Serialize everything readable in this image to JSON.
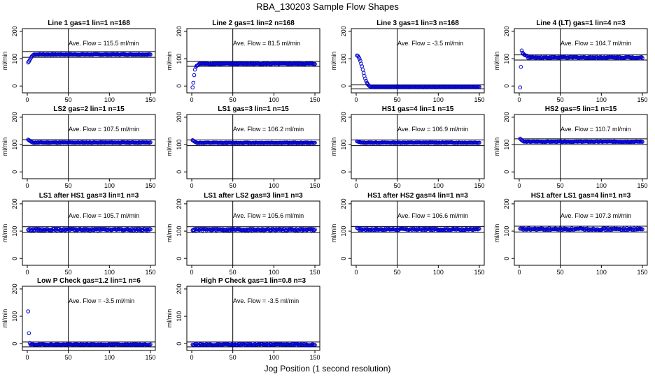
{
  "figure": {
    "title": "RBA_130203  Sample Flow Shapes",
    "xlabel": "Jog Position (1 second resolution)"
  },
  "chart_data": [
    {
      "type": "scatter",
      "title": "Line 1 gas=1 lin=1 n=168",
      "ylabel": "ml/min",
      "annotation": "Ave. Flow = 115.5  ml/min",
      "xlim": [
        0,
        150
      ],
      "ylim": [
        -25,
        210
      ],
      "xticks": [
        0,
        50,
        100,
        150
      ],
      "yticks": [
        0,
        100,
        200
      ],
      "vline": 50,
      "hlines": [
        105,
        126
      ],
      "mean": 115.5,
      "points": {
        "x_start": 1,
        "x_end": 150,
        "n": 150,
        "baseline": 115.5,
        "noise": 1.2,
        "init": [
          86,
          90,
          95,
          101,
          106,
          110,
          113,
          115
        ]
      },
      "marker_color": "#0000cc"
    },
    {
      "type": "scatter",
      "title": "Line 2 gas=1 lin=2 n=168",
      "ylabel": "ml/min",
      "annotation": "Ave. Flow =  81.5  ml/min",
      "xlim": [
        0,
        150
      ],
      "ylim": [
        -25,
        210
      ],
      "xticks": [
        0,
        50,
        100,
        150
      ],
      "yticks": [
        0,
        100,
        200
      ],
      "vline": 50,
      "hlines": [
        72,
        90
      ],
      "mean": 81.5,
      "points": {
        "x_start": 1,
        "x_end": 150,
        "n": 150,
        "baseline": 81.5,
        "noise": 1.5,
        "init": [
          -5,
          12,
          40,
          60,
          70,
          74,
          76,
          77
        ]
      },
      "marker_color": "#0000cc"
    },
    {
      "type": "scatter",
      "title": "Line 3 gas=1 lin=3 n=168",
      "ylabel": "ml/min",
      "annotation": "Ave. Flow = -3.5  ml/min",
      "xlim": [
        0,
        150
      ],
      "ylim": [
        -25,
        210
      ],
      "xticks": [
        0,
        50,
        100,
        150
      ],
      "yticks": [
        0,
        100,
        200
      ],
      "vline": 50,
      "hlines": [
        -10,
        4
      ],
      "mean": -3.5,
      "points": {
        "x_start": 1,
        "x_end": 150,
        "n": 150,
        "baseline": -3.5,
        "noise": 1.0,
        "init": [
          112,
          110,
          106,
          100,
          92,
          82,
          72,
          60,
          48,
          37,
          27,
          19,
          12,
          7,
          3,
          0,
          -2
        ]
      },
      "marker_color": "#0000cc"
    },
    {
      "type": "scatter",
      "title": "Line 4 (LT) gas=1 lin=4 n=3",
      "ylabel": "ml/min",
      "annotation": "Ave. Flow = 104.7  ml/min",
      "xlim": [
        0,
        150
      ],
      "ylim": [
        -25,
        210
      ],
      "xticks": [
        0,
        50,
        100,
        150
      ],
      "yticks": [
        0,
        100,
        200
      ],
      "vline": 50,
      "hlines": [
        95,
        114
      ],
      "mean": 104.7,
      "points": {
        "x_start": 1,
        "x_end": 150,
        "n": 150,
        "baseline": 104.7,
        "noise": 2.5,
        "init": [
          -5,
          70,
          130,
          122,
          118,
          115,
          113,
          112,
          111,
          110
        ]
      },
      "marker_color": "#0000cc"
    },
    {
      "type": "scatter",
      "title": "LS2 gas=2 lin=1 n=15",
      "ylabel": "ml/min",
      "annotation": "Ave. Flow = 107.5  ml/min",
      "xlim": [
        0,
        150
      ],
      "ylim": [
        -25,
        210
      ],
      "xticks": [
        0,
        50,
        100,
        150
      ],
      "yticks": [
        0,
        100,
        200
      ],
      "vline": 50,
      "hlines": [
        97,
        118
      ],
      "mean": 107.5,
      "points": {
        "x_start": 1,
        "x_end": 150,
        "n": 150,
        "baseline": 107.5,
        "noise": 1.2,
        "init": [
          118,
          116,
          114,
          112,
          110
        ]
      },
      "marker_color": "#0000cc"
    },
    {
      "type": "scatter",
      "title": "LS1 gas=3 lin=1 n=15",
      "ylabel": "ml/min",
      "annotation": "Ave. Flow = 106.2  ml/min",
      "xlim": [
        0,
        150
      ],
      "ylim": [
        -25,
        210
      ],
      "xticks": [
        0,
        50,
        100,
        150
      ],
      "yticks": [
        0,
        100,
        200
      ],
      "vline": 50,
      "hlines": [
        96,
        117
      ],
      "mean": 106.2,
      "points": {
        "x_start": 1,
        "x_end": 150,
        "n": 150,
        "baseline": 106.2,
        "noise": 1.2,
        "init": [
          116,
          114,
          112,
          110,
          108
        ]
      },
      "marker_color": "#0000cc"
    },
    {
      "type": "scatter",
      "title": "HS1 gas=4 lin=1 n=15",
      "ylabel": "ml/min",
      "annotation": "Ave. Flow = 106.9  ml/min",
      "xlim": [
        0,
        150
      ],
      "ylim": [
        -25,
        210
      ],
      "xticks": [
        0,
        50,
        100,
        150
      ],
      "yticks": [
        0,
        100,
        200
      ],
      "vline": 50,
      "hlines": [
        96,
        117
      ],
      "mean": 106.9,
      "points": {
        "x_start": 1,
        "x_end": 150,
        "n": 150,
        "baseline": 106.9,
        "noise": 1.2,
        "init": [
          112,
          111,
          110,
          109,
          108
        ]
      },
      "marker_color": "#0000cc"
    },
    {
      "type": "scatter",
      "title": "HS2 gas=5 lin=1 n=15",
      "ylabel": "ml/min",
      "annotation": "Ave. Flow = 110.7  ml/min",
      "xlim": [
        0,
        150
      ],
      "ylim": [
        -25,
        210
      ],
      "xticks": [
        0,
        50,
        100,
        150
      ],
      "yticks": [
        0,
        100,
        200
      ],
      "vline": 50,
      "hlines": [
        100,
        121
      ],
      "mean": 110.7,
      "points": {
        "x_start": 1,
        "x_end": 150,
        "n": 150,
        "baseline": 110.7,
        "noise": 1.2,
        "init": [
          122,
          119,
          116,
          114,
          112
        ]
      },
      "marker_color": "#0000cc"
    },
    {
      "type": "scatter",
      "title": "LS1 after HS1 gas=3 lin=1 n=3",
      "ylabel": "ml/min",
      "annotation": "Ave. Flow = 105.7  ml/min",
      "xlim": [
        0,
        150
      ],
      "ylim": [
        -25,
        210
      ],
      "xticks": [
        0,
        50,
        100,
        150
      ],
      "yticks": [
        0,
        100,
        200
      ],
      "vline": 50,
      "hlines": [
        95,
        116
      ],
      "mean": 105.7,
      "points": {
        "x_start": 1,
        "x_end": 150,
        "n": 150,
        "baseline": 105.7,
        "noise": 3.0,
        "init": []
      },
      "marker_color": "#0000cc"
    },
    {
      "type": "scatter",
      "title": "LS1 after LS2 gas=3 lin=1 n=3",
      "ylabel": "ml/min",
      "annotation": "Ave. Flow = 105.6  ml/min",
      "xlim": [
        0,
        150
      ],
      "ylim": [
        -25,
        210
      ],
      "xticks": [
        0,
        50,
        100,
        150
      ],
      "yticks": [
        0,
        100,
        200
      ],
      "vline": 50,
      "hlines": [
        95,
        116
      ],
      "mean": 105.6,
      "points": {
        "x_start": 1,
        "x_end": 150,
        "n": 150,
        "baseline": 105.6,
        "noise": 3.0,
        "init": []
      },
      "marker_color": "#0000cc"
    },
    {
      "type": "scatter",
      "title": "HS1 after HS2 gas=4 lin=1 n=3",
      "ylabel": "ml/min",
      "annotation": "Ave. Flow = 106.6  ml/min",
      "xlim": [
        0,
        150
      ],
      "ylim": [
        -25,
        210
      ],
      "xticks": [
        0,
        50,
        100,
        150
      ],
      "yticks": [
        0,
        100,
        200
      ],
      "vline": 50,
      "hlines": [
        96,
        117
      ],
      "mean": 106.6,
      "points": {
        "x_start": 1,
        "x_end": 150,
        "n": 150,
        "baseline": 106.6,
        "noise": 3.0,
        "init": [
          112,
          110
        ]
      },
      "marker_color": "#0000cc"
    },
    {
      "type": "scatter",
      "title": "HS1 after LS1 gas=4 lin=1 n=3",
      "ylabel": "ml/min",
      "annotation": "Ave. Flow = 107.3  ml/min",
      "xlim": [
        0,
        150
      ],
      "ylim": [
        -25,
        210
      ],
      "xticks": [
        0,
        50,
        100,
        150
      ],
      "yticks": [
        0,
        100,
        200
      ],
      "vline": 50,
      "hlines": [
        97,
        118
      ],
      "mean": 107.3,
      "points": {
        "x_start": 1,
        "x_end": 150,
        "n": 150,
        "baseline": 107.3,
        "noise": 3.0,
        "init": []
      },
      "marker_color": "#0000cc"
    },
    {
      "type": "scatter",
      "title": "Low P Check gas=1.2 lin=1 n=6",
      "ylabel": "ml/min",
      "annotation": "Ave. Flow = -3.5  ml/min",
      "xlim": [
        0,
        150
      ],
      "ylim": [
        -25,
        210
      ],
      "xticks": [
        0,
        50,
        100,
        150
      ],
      "yticks": [
        0,
        100,
        200
      ],
      "vline": 50,
      "hlines": [
        -12,
        6
      ],
      "mean": -3.5,
      "points": {
        "x_start": 1,
        "x_end": 150,
        "n": 150,
        "baseline": -3.5,
        "noise": 1.5,
        "init": [
          118,
          38,
          2
        ]
      },
      "marker_color": "#0000cc"
    },
    {
      "type": "scatter",
      "title": "High P Check gas=1 lin=0.8 n=3",
      "ylabel": "ml/min",
      "annotation": "Ave. Flow = -3.5  ml/min",
      "xlim": [
        0,
        150
      ],
      "ylim": [
        -25,
        210
      ],
      "xticks": [
        0,
        50,
        100,
        150
      ],
      "yticks": [
        0,
        100,
        200
      ],
      "vline": 50,
      "hlines": [
        -12,
        6
      ],
      "mean": -3.5,
      "points": {
        "x_start": 1,
        "x_end": 150,
        "n": 150,
        "baseline": -3.5,
        "noise": 2.5,
        "init": []
      },
      "marker_color": "#0000cc"
    }
  ]
}
